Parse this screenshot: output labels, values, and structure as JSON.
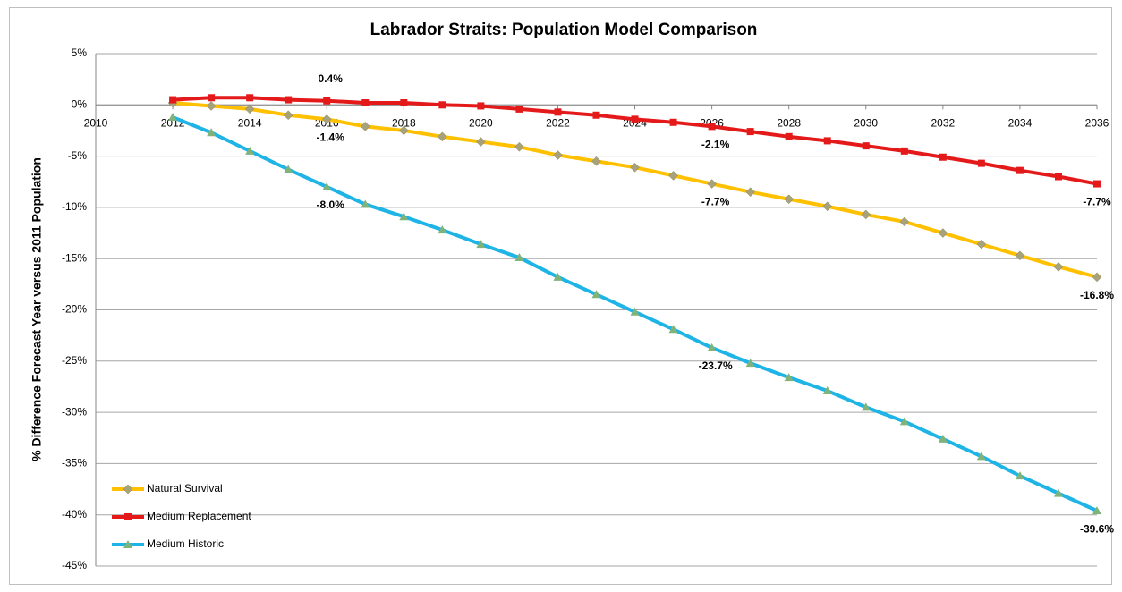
{
  "chart_data": {
    "type": "line",
    "title": "Labrador Straits: Population Model Comparison",
    "y_label": "% Difference Forecast Year versus 2011 Population",
    "x": [
      2012,
      2013,
      2014,
      2015,
      2016,
      2017,
      2018,
      2019,
      2020,
      2021,
      2022,
      2023,
      2024,
      2025,
      2026,
      2027,
      2028,
      2029,
      2030,
      2031,
      2032,
      2033,
      2034,
      2035,
      2036
    ],
    "xlim": [
      2010,
      2036
    ],
    "xticks": [
      2010,
      2012,
      2014,
      2016,
      2018,
      2020,
      2022,
      2024,
      2026,
      2028,
      2030,
      2032,
      2034,
      2036
    ],
    "ylim": [
      -45,
      5
    ],
    "yticks": [
      {
        "value": 5,
        "label": "5%"
      },
      {
        "value": 0,
        "label": "0%"
      },
      {
        "value": -5,
        "label": "-5%"
      },
      {
        "value": -10,
        "label": "-10%"
      },
      {
        "value": -15,
        "label": "-15%"
      },
      {
        "value": -20,
        "label": "-20%"
      },
      {
        "value": -25,
        "label": "-25%"
      },
      {
        "value": -30,
        "label": "-30%"
      },
      {
        "value": -35,
        "label": "-35%"
      },
      {
        "value": -40,
        "label": "-40%"
      },
      {
        "value": -45,
        "label": "-45%"
      }
    ],
    "grid": true,
    "legend": "bottom-left",
    "series": [
      {
        "name": "Natural Survival",
        "color": "#ffc000",
        "marker": "diamond",
        "marker_color": "#a8a27a",
        "values": [
          0.2,
          -0.1,
          -0.4,
          -1.0,
          -1.4,
          -2.1,
          -2.5,
          -3.1,
          -3.6,
          -4.1,
          -4.9,
          -5.5,
          -6.1,
          -6.9,
          -7.7,
          -8.5,
          -9.2,
          -9.9,
          -10.7,
          -11.4,
          -12.5,
          -13.6,
          -14.7,
          -15.8,
          -16.8
        ],
        "value_labels": [
          null,
          null,
          null,
          null,
          "-1.4%",
          null,
          null,
          null,
          null,
          null,
          null,
          null,
          null,
          null,
          "-7.7%",
          null,
          null,
          null,
          null,
          null,
          null,
          null,
          null,
          null,
          "-16.8%"
        ]
      },
      {
        "name": "Medium Replacement",
        "color": "#e41a1a",
        "marker": "square",
        "marker_color": "#e41a1a",
        "values": [
          0.5,
          0.7,
          0.7,
          0.5,
          0.4,
          0.2,
          0.2,
          0.0,
          -0.1,
          -0.4,
          -0.7,
          -1.0,
          -1.4,
          -1.7,
          -2.1,
          -2.6,
          -3.1,
          -3.5,
          -4.0,
          -4.5,
          -5.1,
          -5.7,
          -6.4,
          -7.0,
          -7.7
        ],
        "value_labels": [
          null,
          null,
          null,
          null,
          "0.4%",
          null,
          null,
          null,
          null,
          null,
          null,
          null,
          null,
          null,
          "-2.1%",
          null,
          null,
          null,
          null,
          null,
          null,
          null,
          null,
          null,
          "-7.7%"
        ]
      },
      {
        "name": "Medium Historic",
        "color": "#1fb4e6",
        "marker": "triangle",
        "marker_color": "#7fb37a",
        "values": [
          -1.2,
          -2.7,
          -4.5,
          -6.3,
          -8.0,
          -9.7,
          -10.9,
          -12.2,
          -13.6,
          -14.9,
          -16.8,
          -18.5,
          -20.2,
          -21.9,
          -23.7,
          -25.2,
          -26.6,
          -27.9,
          -29.5,
          -30.9,
          -32.6,
          -34.3,
          -36.2,
          -37.9,
          -39.6
        ],
        "value_labels": [
          null,
          null,
          null,
          null,
          "-8.0%",
          null,
          null,
          null,
          null,
          null,
          null,
          null,
          null,
          null,
          "-23.7%",
          null,
          null,
          null,
          null,
          null,
          null,
          null,
          null,
          null,
          "-39.6%"
        ]
      }
    ]
  }
}
